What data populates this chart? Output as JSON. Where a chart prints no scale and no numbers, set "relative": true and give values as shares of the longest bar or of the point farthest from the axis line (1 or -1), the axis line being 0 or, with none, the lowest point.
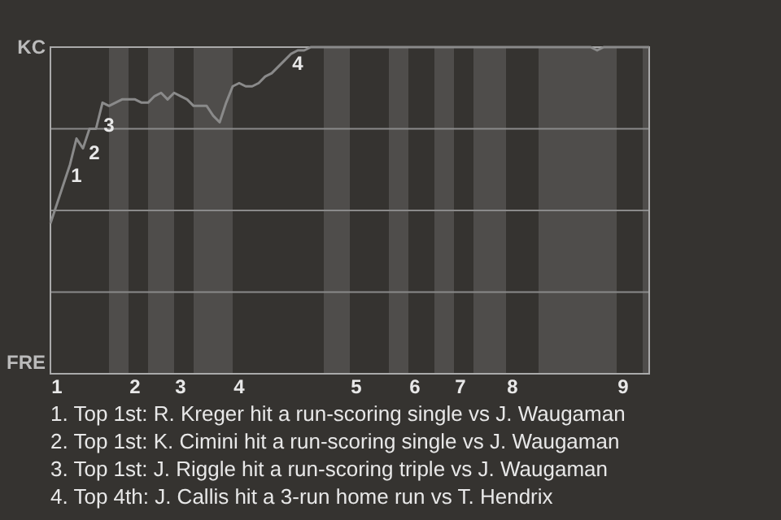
{
  "chart_data": {
    "type": "line",
    "relative": true,
    "categories": [
      null,
      "1",
      null,
      null,
      null,
      null,
      null,
      null,
      null,
      null,
      null,
      null,
      null,
      "2",
      null,
      null,
      null,
      null,
      null,
      null,
      "3",
      null,
      null,
      null,
      null,
      null,
      null,
      null,
      null,
      "4",
      null,
      null,
      null,
      null,
      null,
      null,
      null,
      null,
      null,
      null,
      null,
      null,
      null,
      null,
      null,
      null,
      null,
      "5",
      null,
      null,
      null,
      null,
      null,
      null,
      null,
      null,
      "6",
      null,
      null,
      null,
      null,
      null,
      null,
      "7",
      null,
      null,
      null,
      null,
      null,
      null,
      null,
      "8",
      null,
      null,
      null,
      null,
      null,
      null,
      null,
      null,
      null,
      null,
      null,
      null,
      null,
      null,
      null,
      null,
      "9",
      null,
      null,
      null,
      null
    ],
    "marker": "none",
    "line_style": "solid",
    "series": [
      {
        "color": "#8a8a8a",
        "values": [
          0.46,
          0.52,
          0.58,
          0.64,
          0.72,
          0.69,
          0.75,
          0.75,
          0.83,
          0.82,
          0.83,
          0.84,
          0.84,
          0.84,
          0.83,
          0.83,
          0.85,
          0.86,
          0.84,
          0.86,
          0.85,
          0.84,
          0.82,
          0.82,
          0.82,
          0.79,
          0.77,
          0.83,
          0.88,
          0.89,
          0.88,
          0.88,
          0.89,
          0.91,
          0.92,
          0.94,
          0.96,
          0.98,
          0.99,
          0.99,
          1,
          1,
          1,
          1,
          1,
          1,
          1,
          1,
          1,
          1,
          1,
          1,
          1,
          1,
          1,
          1,
          1,
          1,
          1,
          1,
          1,
          1,
          1,
          1,
          1,
          1,
          1,
          1,
          1,
          1,
          1,
          1,
          1,
          1,
          1,
          1,
          1,
          1,
          1,
          1,
          1,
          1,
          1,
          1,
          0.99,
          1,
          1,
          1,
          1,
          1,
          1,
          1,
          1
        ]
      }
    ],
    "ref_lines": [
      {
        "axis": "y",
        "value": 0.25,
        "color": "#8a8a8a"
      },
      {
        "axis": "y",
        "value": 0.5,
        "color": "#8a8a8a"
      },
      {
        "axis": "y",
        "value": 0.75,
        "color": "#8a8a8a"
      }
    ],
    "annotations": [
      "KC",
      "FRE",
      "1",
      "2",
      "3",
      "4",
      "1. Top 1st: R. Kreger hit a run-scoring single vs J. Waugaman",
      "2. Top 1st: K. Cimini hit a run-scoring single vs J. Waugaman",
      "3. Top 1st: J. Riggle hit a run-scoring triple vs J. Waugaman",
      "4. Top 4th: J. Callis hit a 3-run home run vs T. Hendrix"
    ]
  }
}
